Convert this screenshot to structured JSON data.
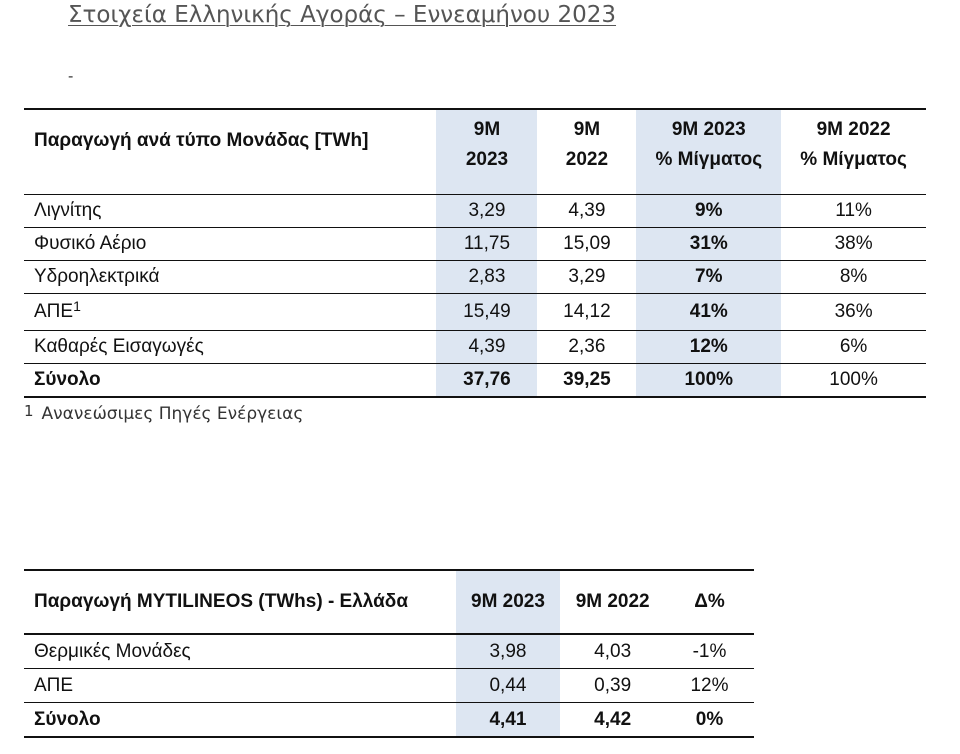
{
  "title": "Στοιχεία Ελληνικής Αγοράς – Εννεαμήνου 2023",
  "dash": "-",
  "table1": {
    "header": {
      "label": "Παραγωγή ανά τύπο Μονάδας [TWh]",
      "c1a": "9M",
      "c1b": "2023",
      "c2a": "9M",
      "c2b": "2022",
      "c3a": "9M 2023",
      "c3b": "% Μίγματος",
      "c4a": "9M 2022",
      "c4b": "% Μίγματος"
    },
    "rows": [
      {
        "label": "Λιγνίτης",
        "v1": "3,29",
        "v2": "4,39",
        "v3": "9%",
        "v4": "11%"
      },
      {
        "label": "Φυσικό Αέριο",
        "v1": "11,75",
        "v2": "15,09",
        "v3": "31%",
        "v4": "38%"
      },
      {
        "label": "Υδροηλεκτρικά",
        "v1": "2,83",
        "v2": "3,29",
        "v3": "7%",
        "v4": "8%"
      },
      {
        "label": "ΑΠΕ",
        "sup": "1",
        "v1": "15,49",
        "v2": "14,12",
        "v3": "41%",
        "v4": "36%"
      },
      {
        "label": "Καθαρές Εισαγωγές",
        "v1": "4,39",
        "v2": "2,36",
        "v3": "12%",
        "v4": "6%"
      },
      {
        "label": "Σύνολο",
        "v1": "37,76",
        "v2": "39,25",
        "v3": "100%",
        "v4": "100%"
      }
    ]
  },
  "footnote": {
    "mark": "1",
    "text": "Ανανεώσιμες Πηγές Ενέργειας"
  },
  "table2": {
    "header": {
      "label": "Παραγωγή MYTILINEOS (TWhs) - Ελλάδα",
      "c1": "9M 2023",
      "c2": "9M 2022",
      "c3": "Δ%"
    },
    "rows": [
      {
        "label": "Θερμικές Μονάδες",
        "v1": "3,98",
        "v2": "4,03",
        "v3": "-1%"
      },
      {
        "label": "ΑΠΕ",
        "v1": "0,44",
        "v2": "0,39",
        "v3": "12%"
      },
      {
        "label": "Σύνολο",
        "v1": "4,41",
        "v2": "4,42",
        "v3": "0%"
      }
    ]
  },
  "colors": {
    "highlight": "#dde6f2",
    "title": "#555555"
  }
}
